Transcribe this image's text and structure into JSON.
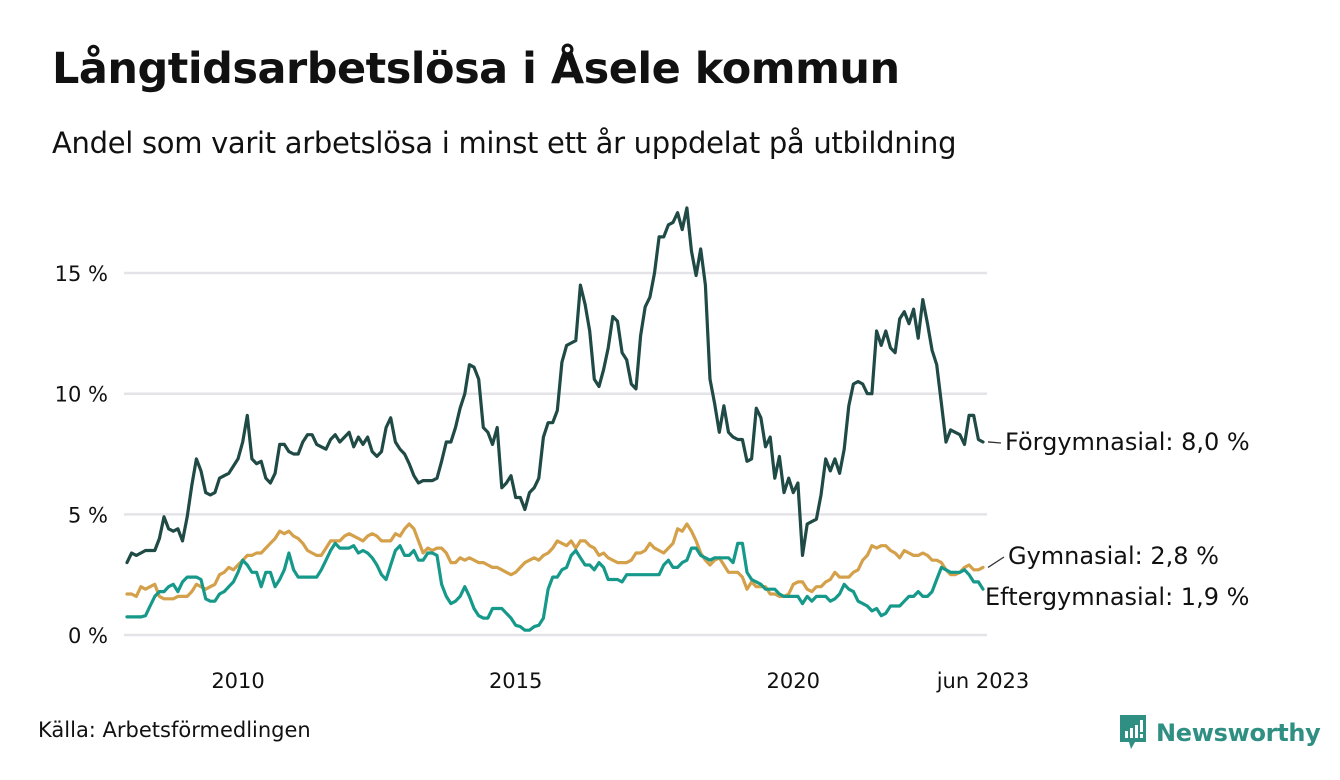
{
  "header": {
    "title": "Långtidsarbetslösa i Åsele kommun",
    "subtitle": "Andel som varit arbetslösa i minst ett år uppdelat på utbildning"
  },
  "footer": {
    "source": "Källa: Arbetsförmedlingen",
    "logo_text": "Newsworthy",
    "logo_icon": "bar-chart-speech-bubble-icon"
  },
  "colors": {
    "forgymnasial": "#1f4a45",
    "gymnasial": "#d4a04a",
    "eftergymnasial": "#16998a",
    "grid": "#e3e3e8",
    "logo": "#2f8f83"
  },
  "chart_data": {
    "type": "line",
    "title": "Långtidsarbetslösa i Åsele kommun",
    "subtitle": "Andel som varit arbetslösa i minst ett år uppdelat på utbildning",
    "x_start": "2008-01",
    "x_end": "2023-06",
    "x_frequency": "monthly",
    "x_ticks": [
      {
        "label": "2010",
        "month_index": 24
      },
      {
        "label": "2015",
        "month_index": 84
      },
      {
        "label": "2020",
        "month_index": 144
      },
      {
        "label": "jun 2023",
        "month_index": 185
      }
    ],
    "y_ticks": [
      {
        "label": "0 %",
        "value": 0
      },
      {
        "label": "5 %",
        "value": 5
      },
      {
        "label": "10 %",
        "value": 10
      },
      {
        "label": "15 %",
        "value": 15
      }
    ],
    "ylim": [
      0,
      18
    ],
    "grid": true,
    "series": [
      {
        "key": "forgymnasial",
        "name": "Förgymnasial",
        "end_label": "Förgymnasial: 8,0 %",
        "values": [
          3.0,
          3.4,
          3.3,
          3.4,
          3.5,
          3.5,
          3.5,
          4.0,
          4.9,
          4.4,
          4.3,
          4.4,
          3.9,
          4.9,
          6.2,
          7.3,
          6.8,
          5.9,
          5.8,
          5.9,
          6.5,
          6.6,
          6.7,
          7.0,
          7.3,
          8.0,
          9.1,
          7.3,
          7.1,
          7.2,
          6.5,
          6.3,
          6.7,
          7.9,
          7.9,
          7.6,
          7.5,
          7.5,
          8.0,
          8.3,
          8.3,
          7.9,
          7.8,
          7.7,
          8.1,
          8.3,
          8.0,
          8.2,
          8.4,
          7.8,
          8.2,
          7.9,
          8.2,
          7.6,
          7.4,
          7.6,
          8.6,
          9.0,
          8.0,
          7.7,
          7.5,
          7.1,
          6.6,
          6.3,
          6.4,
          6.4,
          6.4,
          6.5,
          7.2,
          8.0,
          8.0,
          8.6,
          9.4,
          10.0,
          11.2,
          11.1,
          10.6,
          8.6,
          8.4,
          7.9,
          8.6,
          6.1,
          6.3,
          6.6,
          5.7,
          5.7,
          5.2,
          5.9,
          6.1,
          6.5,
          8.2,
          8.8,
          8.8,
          9.3,
          11.3,
          12.0,
          12.1,
          12.2,
          14.5,
          13.7,
          12.6,
          10.6,
          10.3,
          11.0,
          11.9,
          13.2,
          13.0,
          11.7,
          11.4,
          10.4,
          10.2,
          12.4,
          13.6,
          14.0,
          15.0,
          16.5,
          16.5,
          17.0,
          17.1,
          17.5,
          16.8,
          17.7,
          15.9,
          14.9,
          16.0,
          14.5,
          10.6,
          9.6,
          8.4,
          9.5,
          8.4,
          8.2,
          8.1,
          8.1,
          7.2,
          7.3,
          9.4,
          9.0,
          7.8,
          8.2,
          6.5,
          7.4,
          5.9,
          6.5,
          5.9,
          6.3,
          3.3,
          4.6,
          4.7,
          4.8,
          5.8,
          7.3,
          6.8,
          7.3,
          6.7,
          7.7,
          9.5,
          10.4,
          10.5,
          10.4,
          10.0,
          10.0,
          12.6,
          12.0,
          12.6,
          11.9,
          11.7,
          13.1,
          13.4,
          12.9,
          13.5,
          12.3,
          13.9,
          12.9,
          11.8,
          11.2,
          9.6,
          8.0,
          8.5,
          8.4,
          8.3,
          7.9,
          9.1,
          9.1,
          8.1,
          8.0
        ]
      },
      {
        "key": "gymnasial",
        "name": "Gymnasial",
        "end_label": "Gymnasial: 2,8 %",
        "values": [
          1.7,
          1.7,
          1.6,
          2.0,
          1.9,
          2.0,
          2.1,
          1.6,
          1.5,
          1.5,
          1.5,
          1.6,
          1.6,
          1.6,
          1.8,
          2.1,
          2.0,
          1.9,
          2.0,
          2.1,
          2.5,
          2.6,
          2.8,
          2.7,
          2.9,
          3.1,
          3.3,
          3.3,
          3.4,
          3.4,
          3.6,
          3.8,
          4.0,
          4.3,
          4.2,
          4.3,
          4.1,
          4.0,
          3.8,
          3.5,
          3.4,
          3.3,
          3.3,
          3.6,
          3.9,
          3.9,
          3.9,
          4.1,
          4.2,
          4.1,
          4.0,
          3.9,
          4.1,
          4.2,
          4.1,
          3.9,
          3.9,
          3.9,
          4.2,
          4.1,
          4.4,
          4.6,
          4.4,
          3.9,
          3.4,
          3.6,
          3.5,
          3.6,
          3.6,
          3.4,
          3.0,
          3.0,
          3.2,
          3.1,
          3.2,
          3.1,
          3.0,
          3.0,
          2.9,
          2.8,
          2.8,
          2.7,
          2.6,
          2.5,
          2.6,
          2.8,
          3.0,
          3.1,
          3.2,
          3.1,
          3.3,
          3.4,
          3.6,
          3.9,
          3.8,
          3.7,
          3.9,
          3.6,
          3.9,
          3.9,
          3.7,
          3.6,
          3.3,
          3.4,
          3.2,
          3.1,
          3.0,
          3.0,
          3.0,
          3.1,
          3.4,
          3.4,
          3.5,
          3.8,
          3.6,
          3.5,
          3.4,
          3.6,
          3.8,
          4.4,
          4.3,
          4.6,
          4.3,
          3.9,
          3.4,
          3.1,
          2.9,
          3.1,
          3.2,
          2.9,
          2.6,
          2.6,
          2.6,
          2.4,
          1.9,
          2.2,
          2.0,
          2.0,
          2.0,
          1.7,
          1.7,
          1.6,
          1.6,
          1.7,
          2.1,
          2.2,
          2.2,
          1.9,
          1.8,
          2.0,
          2.0,
          2.2,
          2.3,
          2.6,
          2.4,
          2.4,
          2.4,
          2.6,
          2.7,
          3.1,
          3.3,
          3.7,
          3.6,
          3.7,
          3.7,
          3.5,
          3.4,
          3.2,
          3.5,
          3.4,
          3.3,
          3.3,
          3.4,
          3.3,
          3.1,
          3.1,
          3.0,
          2.7,
          2.5,
          2.5,
          2.6,
          2.8,
          2.9,
          2.7,
          2.7,
          2.8
        ]
      },
      {
        "key": "eftergymnasial",
        "name": "Eftergymnasial",
        "end_label": "Eftergymnasial: 1,9 %",
        "values": [
          0.75,
          0.75,
          0.75,
          0.75,
          0.8,
          1.2,
          1.6,
          1.8,
          1.8,
          2.0,
          2.1,
          1.8,
          2.2,
          2.4,
          2.4,
          2.4,
          2.3,
          1.5,
          1.4,
          1.4,
          1.7,
          1.8,
          2.0,
          2.2,
          2.6,
          3.1,
          2.9,
          2.6,
          2.6,
          2.0,
          2.6,
          2.6,
          2.0,
          2.3,
          2.7,
          3.4,
          2.7,
          2.4,
          2.4,
          2.4,
          2.4,
          2.4,
          2.7,
          3.1,
          3.5,
          3.8,
          3.6,
          3.6,
          3.6,
          3.7,
          3.4,
          3.5,
          3.4,
          3.2,
          2.9,
          2.5,
          2.3,
          2.9,
          3.5,
          3.7,
          3.3,
          3.3,
          3.5,
          3.1,
          3.1,
          3.4,
          3.4,
          3.3,
          2.1,
          1.6,
          1.3,
          1.4,
          1.6,
          2.0,
          1.6,
          1.1,
          0.8,
          0.7,
          0.7,
          1.1,
          1.1,
          1.1,
          0.9,
          0.7,
          0.4,
          0.35,
          0.2,
          0.2,
          0.35,
          0.4,
          0.7,
          1.9,
          2.4,
          2.4,
          2.7,
          2.8,
          3.3,
          3.5,
          3.2,
          2.9,
          2.9,
          2.7,
          3.0,
          2.8,
          2.3,
          2.3,
          2.3,
          2.2,
          2.5,
          2.5,
          2.5,
          2.5,
          2.5,
          2.5,
          2.5,
          2.5,
          2.9,
          3.1,
          2.8,
          2.8,
          3.0,
          3.1,
          3.6,
          3.6,
          3.3,
          3.2,
          3.1,
          3.2,
          3.2,
          3.2,
          3.2,
          3.0,
          3.8,
          3.8,
          2.6,
          2.3,
          2.2,
          2.1,
          1.9,
          1.9,
          1.9,
          1.7,
          1.6,
          1.6,
          1.6,
          1.6,
          1.3,
          1.6,
          1.4,
          1.6,
          1.6,
          1.6,
          1.4,
          1.5,
          1.7,
          2.1,
          1.9,
          1.8,
          1.4,
          1.3,
          1.2,
          1.0,
          1.1,
          0.8,
          0.9,
          1.2,
          1.2,
          1.2,
          1.4,
          1.6,
          1.6,
          1.8,
          1.6,
          1.6,
          1.8,
          2.3,
          2.8,
          2.7,
          2.6,
          2.6,
          2.6,
          2.7,
          2.5,
          2.2,
          2.2,
          1.9
        ]
      }
    ]
  }
}
